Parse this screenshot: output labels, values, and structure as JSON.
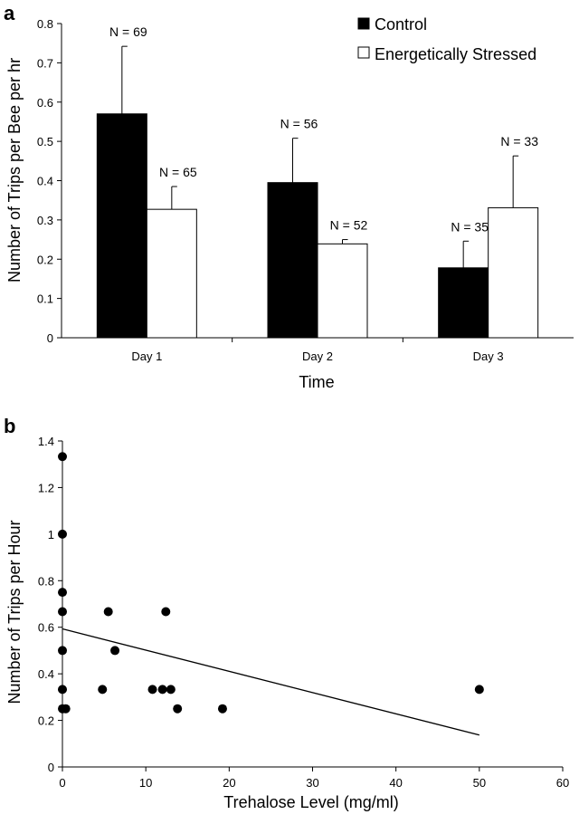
{
  "chart_data": [
    {
      "type": "bar",
      "panel_label": "a",
      "categories": [
        "Day 1",
        "Day 2",
        "Day 3"
      ],
      "series": [
        {
          "name": "Control",
          "color": "#000000",
          "values": [
            0.57,
            0.395,
            0.178
          ],
          "error_upper": [
            0.742,
            0.508,
            0.246
          ],
          "n_labels": [
            "N = 69",
            "N = 56",
            "N = 35"
          ]
        },
        {
          "name": "Energetically Stressed",
          "color": "#ffffff",
          "values": [
            0.327,
            0.239,
            0.331
          ],
          "error_upper": [
            0.385,
            0.25,
            0.463
          ],
          "n_labels": [
            "N = 65",
            "N = 52",
            "N = 33"
          ]
        }
      ],
      "xlabel": "Time",
      "ylabel": "Number of Trips per Bee per hr",
      "ylim": [
        0,
        0.8
      ],
      "yticks": [
        "0",
        "0.1",
        "0.2",
        "0.3",
        "0.4",
        "0.5",
        "0.6",
        "0.7",
        "0.8"
      ],
      "legend_position": "top-right",
      "grid": false
    },
    {
      "type": "scatter",
      "panel_label": "b",
      "points": [
        [
          0,
          1.333
        ],
        [
          0,
          1.0
        ],
        [
          0,
          0.75
        ],
        [
          0,
          0.667
        ],
        [
          0,
          0.5
        ],
        [
          0,
          0.333
        ],
        [
          0,
          0.25
        ],
        [
          0.4,
          0.25
        ],
        [
          4.8,
          0.333
        ],
        [
          5.5,
          0.667
        ],
        [
          6.3,
          0.5
        ],
        [
          10.8,
          0.333
        ],
        [
          12,
          0.333
        ],
        [
          12.4,
          0.667
        ],
        [
          13,
          0.333
        ],
        [
          13.8,
          0.25
        ],
        [
          19.2,
          0.25
        ],
        [
          50,
          0.333
        ]
      ],
      "trendline": {
        "x": [
          0,
          50
        ],
        "y": [
          0.593,
          0.137
        ]
      },
      "xlabel": "Trehalose Level (mg/ml)",
      "ylabel": "Number of Trips per Hour",
      "xlim": [
        0,
        60
      ],
      "ylim": [
        0,
        1.4
      ],
      "xticks": [
        "0",
        "10",
        "20",
        "30",
        "40",
        "50",
        "60"
      ],
      "yticks": [
        "0",
        "0.2",
        "0.4",
        "0.6",
        "0.8",
        "1",
        "1.2",
        "1.4"
      ],
      "grid": false
    }
  ]
}
